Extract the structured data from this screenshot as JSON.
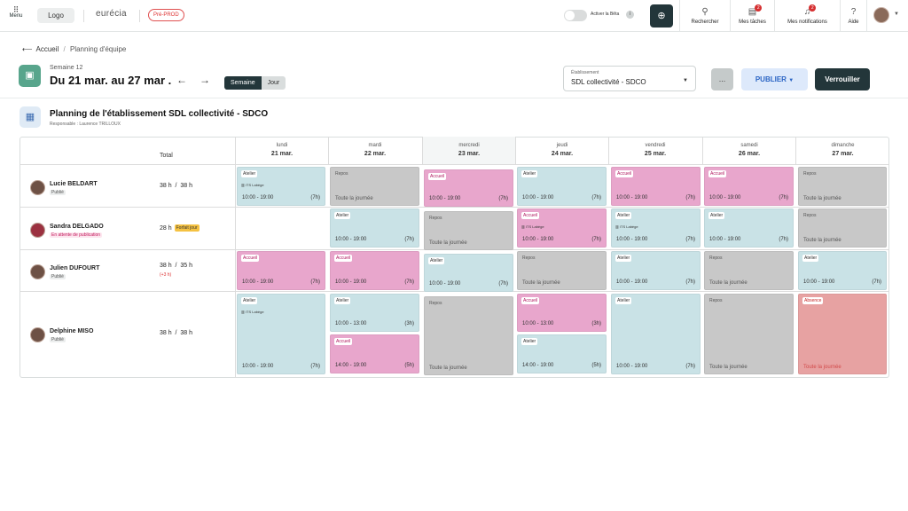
{
  "topbar": {
    "menu_label": "Menu",
    "logo_label": "Logo",
    "brand": "eurécia",
    "env_badge": "Pré-PROD",
    "beta_label": "Activer la Bêta",
    "search_label": "Rechercher",
    "tasks_label": "Mes tâches",
    "tasks_badge": "2",
    "notifications_label": "Mes notifications",
    "notifications_badge": "2",
    "help_label": "Aide"
  },
  "breadcrumb": {
    "home": "Accueil",
    "current": "Planning d'équipe"
  },
  "week": {
    "number_label": "Semaine 12",
    "range_label": "Du 21 mar. au 27 mar .",
    "view_week": "Semaine",
    "view_day": "Jour"
  },
  "establishment": {
    "label": "Établissement",
    "value": "SDL collectivité - SDCO"
  },
  "actions": {
    "more": "...",
    "publish": "PUBLIER",
    "lock": "Verrouiller"
  },
  "planning": {
    "title": "Planning de l'établissement SDL collectivité - SDCO",
    "responsible": "Responsable : Laurence TRILLOUX"
  },
  "total_header": "Total",
  "days": [
    {
      "name": "lundi",
      "date": "21 mar."
    },
    {
      "name": "mardi",
      "date": "22 mar."
    },
    {
      "name": "mercredi",
      "date": "23 mar."
    },
    {
      "name": "jeudi",
      "date": "24 mar."
    },
    {
      "name": "vendredi",
      "date": "25 mar."
    },
    {
      "name": "samedi",
      "date": "26 mar."
    },
    {
      "name": "dimanche",
      "date": "27 mar."
    }
  ],
  "employees": [
    {
      "name": "Lucie BELDART",
      "status": "Publié",
      "total_done": "38 h",
      "total_planned": "38 h"
    },
    {
      "name": "Sandra DELGADO",
      "status": "En attente de publication",
      "total": "28 h",
      "forfait": "Forfait jour"
    },
    {
      "name": "Julien DUFOURT",
      "status": "Publié",
      "total_done": "38 h",
      "total_planned": "35 h",
      "delta": "(+3 h)"
    },
    {
      "name": "Delphine MISO",
      "status": "Publié",
      "total_done": "38 h",
      "total_planned": "38 h"
    }
  ],
  "shifts": {
    "r0": [
      {
        "type": "Atelier",
        "loc": "ITS Labège",
        "time": "10:00 - 19:00",
        "dur": "(7h)"
      },
      {
        "type": "Repos",
        "allday": "Toute la journée"
      },
      {
        "type": "Accueil",
        "time": "10:00 - 19:00",
        "dur": "(7h)"
      },
      {
        "type": "Atelier",
        "time": "10:00 - 19:00",
        "dur": "(7h)"
      },
      {
        "type": "Accueil",
        "time": "10:00 - 19:00",
        "dur": "(7h)"
      },
      {
        "type": "Accueil",
        "time": "10:00 - 19:00",
        "dur": "(7h)"
      },
      {
        "type": "Repos",
        "allday": "Toute la journée"
      }
    ],
    "r1": [
      {
        "type": "Atelier",
        "time": "10:00 - 19:00",
        "dur": "(7h)"
      },
      {
        "type": "Repos",
        "allday": "Toute la journée"
      },
      {
        "type": "Accueil",
        "loc": "ITS Labège",
        "time": "10:00 - 19:00",
        "dur": "(7h)"
      },
      {
        "type": "Atelier",
        "loc": "ITS Labège",
        "time": "10:00 - 19:00",
        "dur": "(7h)"
      },
      {
        "type": "Atelier",
        "time": "10:00 - 19:00",
        "dur": "(7h)"
      },
      {
        "type": "Repos",
        "allday": "Toute la journée"
      }
    ],
    "r2": [
      {
        "type": "Accueil",
        "time": "10:00 - 19:00",
        "dur": "(7h)"
      },
      {
        "type": "Accueil",
        "time": "10:00 - 19:00",
        "dur": "(7h)"
      },
      {
        "type": "Atelier",
        "time": "10:00 - 19:00",
        "dur": "(7h)"
      },
      {
        "type": "Repos",
        "allday": "Toute la journée"
      },
      {
        "type": "Atelier",
        "time": "10:00 - 19:00",
        "dur": "(7h)"
      },
      {
        "type": "Repos",
        "allday": "Toute la journée"
      },
      {
        "type": "Atelier",
        "time": "10:00 - 19:00",
        "dur": "(7h)"
      }
    ],
    "r3": [
      {
        "type": "Atelier",
        "loc": "ITS Labège",
        "time": "10:00 - 19:00",
        "dur": "(7h)"
      },
      {
        "type": "Atelier",
        "time": "10:00 - 13:00",
        "dur": "(3h)"
      },
      {
        "type": "Accueil",
        "time": "14:00 - 19:00",
        "dur": "(5h)"
      },
      {
        "type": "Repos",
        "allday": "Toute la journée"
      },
      {
        "type": "Accueil",
        "time": "10:00 - 13:00",
        "dur": "(3h)"
      },
      {
        "type": "Atelier",
        "time": "14:00 - 19:00",
        "dur": "(5h)"
      },
      {
        "type": "Atelier",
        "time": "10:00 - 19:00",
        "dur": "(7h)"
      },
      {
        "type": "Repos",
        "allday": "Toute la journée"
      },
      {
        "type": "Absence",
        "allday": "Toute la journée"
      }
    ]
  },
  "colors": {
    "atelier": "#c9e2e6",
    "accueil": "#e8a6cc",
    "repos": "#c8c8c8",
    "absence": "#e7a2a2",
    "primary": "#23363a"
  }
}
